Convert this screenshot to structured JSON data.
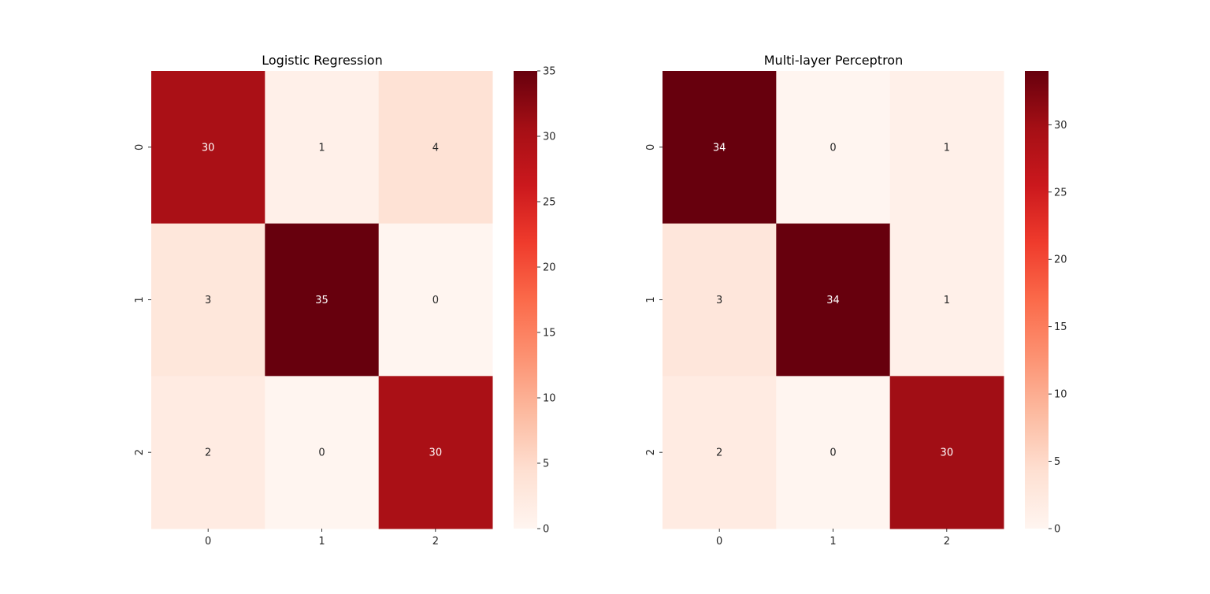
{
  "chart_data": [
    {
      "type": "heatmap",
      "title": "Logistic Regression",
      "xlabel": "",
      "ylabel": "",
      "x_categories": [
        "0",
        "1",
        "2"
      ],
      "y_categories": [
        "0",
        "1",
        "2"
      ],
      "values": [
        [
          30,
          1,
          4
        ],
        [
          3,
          35,
          0
        ],
        [
          2,
          0,
          30
        ]
      ],
      "colormap": "Reds",
      "vmin": 0,
      "vmax": 35,
      "colorbar_ticks": [
        "0",
        "5",
        "10",
        "15",
        "20",
        "25",
        "30",
        "35"
      ],
      "annotations": true
    },
    {
      "type": "heatmap",
      "title": "Multi-layer Perceptron",
      "xlabel": "",
      "ylabel": "",
      "x_categories": [
        "0",
        "1",
        "2"
      ],
      "y_categories": [
        "0",
        "1",
        "2"
      ],
      "values": [
        [
          34,
          0,
          1
        ],
        [
          3,
          34,
          1
        ],
        [
          2,
          0,
          30
        ]
      ],
      "colormap": "Reds",
      "vmin": 0,
      "vmax": 34,
      "colorbar_ticks": [
        "0",
        "5",
        "10",
        "15",
        "20",
        "25",
        "30"
      ],
      "annotations": true
    }
  ],
  "colors": {
    "reds_stops": [
      "#fff5f0",
      "#fee0d2",
      "#fcbba1",
      "#fc9272",
      "#fb6a4a",
      "#ef3b2c",
      "#cb181d",
      "#a50f15",
      "#67000d"
    ]
  }
}
